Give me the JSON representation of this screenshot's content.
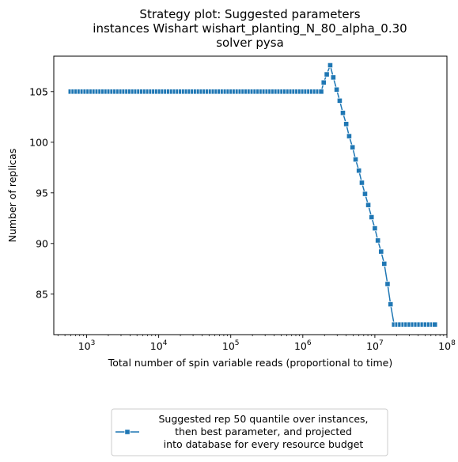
{
  "chart_data": {
    "type": "line",
    "title_lines": [
      "Strategy plot: Suggested parameters",
      "instances Wishart wishart_planting_N_80_alpha_0.30",
      "solver pysa"
    ],
    "xlabel": "Total number of spin variable reads (proportional to time)",
    "ylabel": "Number of replicas",
    "xscale": "log",
    "xlim": [
      350,
      100000000
    ],
    "ylim": [
      81,
      108.5
    ],
    "x_tick_labels": [
      {
        "base": "10",
        "exp": "3",
        "value": 1000
      },
      {
        "base": "10",
        "exp": "4",
        "value": 10000
      },
      {
        "base": "10",
        "exp": "5",
        "value": 100000
      },
      {
        "base": "10",
        "exp": "6",
        "value": 1000000
      },
      {
        "base": "10",
        "exp": "7",
        "value": 10000000
      },
      {
        "base": "10",
        "exp": "8",
        "value": 100000000
      }
    ],
    "y_ticks": [
      85,
      90,
      95,
      100,
      105
    ],
    "grid": false,
    "legend_position": "below-center",
    "series": [
      {
        "legend_lines": [
          "Suggested rep 50 quantile over instances,",
          "then best parameter, and projected",
          "into database for every resource budget"
        ],
        "color": "#1f77b4",
        "marker": "square",
        "points": [
          [
            600,
            105
          ],
          [
            660,
            105
          ],
          [
            726,
            105
          ],
          [
            799,
            105
          ],
          [
            878,
            105
          ],
          [
            966,
            105
          ],
          [
            1063,
            105
          ],
          [
            1169,
            105
          ],
          [
            1286,
            105
          ],
          [
            1415,
            105
          ],
          [
            1556,
            105
          ],
          [
            1712,
            105
          ],
          [
            1883,
            105
          ],
          [
            2071,
            105
          ],
          [
            2279,
            105
          ],
          [
            2506,
            105
          ],
          [
            2757,
            105
          ],
          [
            3033,
            105
          ],
          [
            3336,
            105
          ],
          [
            3670,
            105
          ],
          [
            4037,
            105
          ],
          [
            4440,
            105
          ],
          [
            4884,
            105
          ],
          [
            5373,
            105
          ],
          [
            5910,
            105
          ],
          [
            6501,
            105
          ],
          [
            7151,
            105
          ],
          [
            7867,
            105
          ],
          [
            8653,
            105
          ],
          [
            9519,
            105
          ],
          [
            10470,
            105
          ],
          [
            11517,
            105
          ],
          [
            12669,
            105
          ],
          [
            13936,
            105
          ],
          [
            15330,
            105
          ],
          [
            16863,
            105
          ],
          [
            18549,
            105
          ],
          [
            20404,
            105
          ],
          [
            22445,
            105
          ],
          [
            24689,
            105
          ],
          [
            27158,
            105
          ],
          [
            29874,
            105
          ],
          [
            32861,
            105
          ],
          [
            36148,
            105
          ],
          [
            39762,
            105
          ],
          [
            43738,
            105
          ],
          [
            48112,
            105
          ],
          [
            52924,
            105
          ],
          [
            58216,
            105
          ],
          [
            64037,
            105
          ],
          [
            70441,
            105
          ],
          [
            77485,
            105
          ],
          [
            85234,
            105
          ],
          [
            93757,
            105
          ],
          [
            103133,
            105
          ],
          [
            113446,
            105
          ],
          [
            124791,
            105
          ],
          [
            137270,
            105
          ],
          [
            150997,
            105
          ],
          [
            166097,
            105
          ],
          [
            182706,
            105
          ],
          [
            200977,
            105
          ],
          [
            221075,
            105
          ],
          [
            243182,
            105
          ],
          [
            267500,
            105
          ],
          [
            294250,
            105
          ],
          [
            323675,
            105
          ],
          [
            356043,
            105
          ],
          [
            391647,
            105
          ],
          [
            430812,
            105
          ],
          [
            473893,
            105
          ],
          [
            521282,
            105
          ],
          [
            573411,
            105
          ],
          [
            630752,
            105
          ],
          [
            693827,
            105
          ],
          [
            763210,
            105
          ],
          [
            839531,
            105
          ],
          [
            923484,
            105
          ],
          [
            1015833,
            105
          ],
          [
            1117416,
            105
          ],
          [
            1229157,
            105
          ],
          [
            1352073,
            105
          ],
          [
            1487280,
            105
          ],
          [
            1636008,
            105
          ],
          [
            1799609,
            105
          ],
          [
            1950000,
            105.9
          ],
          [
            2150000,
            106.7
          ],
          [
            2400000,
            107.6
          ],
          [
            2650000,
            106.4
          ],
          [
            2950000,
            105.2
          ],
          [
            3250000,
            104.1
          ],
          [
            3600000,
            102.9
          ],
          [
            4000000,
            101.8
          ],
          [
            4400000,
            100.6
          ],
          [
            4900000,
            99.5
          ],
          [
            5400000,
            98.3
          ],
          [
            6000000,
            97.2
          ],
          [
            6600000,
            96.0
          ],
          [
            7300000,
            94.9
          ],
          [
            8100000,
            93.8
          ],
          [
            9000000,
            92.6
          ],
          [
            10000000,
            91.5
          ],
          [
            11000000,
            90.3
          ],
          [
            12200000,
            89.2
          ],
          [
            13500000,
            88.0
          ],
          [
            15000000,
            86.0
          ],
          [
            16500000,
            84.0
          ],
          [
            18500000,
            82.0
          ],
          [
            20500000,
            82
          ],
          [
            22500000,
            82
          ],
          [
            25000000,
            82
          ],
          [
            27500000,
            82
          ],
          [
            30500000,
            82
          ],
          [
            34000000,
            82
          ],
          [
            37500000,
            82
          ],
          [
            41500000,
            82
          ],
          [
            46000000,
            82
          ],
          [
            51000000,
            82
          ],
          [
            57000000,
            82
          ],
          [
            63000000,
            82
          ],
          [
            68000000,
            82
          ]
        ]
      }
    ]
  }
}
